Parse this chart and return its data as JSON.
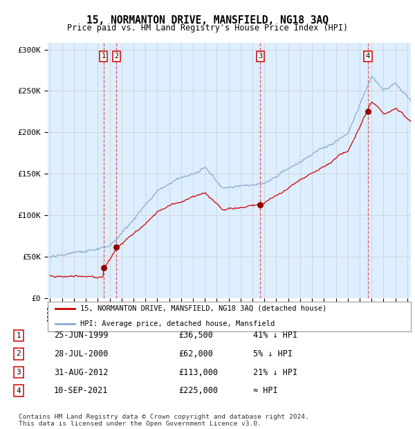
{
  "title": "15, NORMANTON DRIVE, MANSFIELD, NG18 3AQ",
  "subtitle": "Price paid vs. HM Land Registry's House Price Index (HPI)",
  "ylabel_ticks": [
    "£0",
    "£50K",
    "£100K",
    "£150K",
    "£200K",
    "£250K",
    "£300K"
  ],
  "ytick_values": [
    0,
    50000,
    100000,
    150000,
    200000,
    250000,
    300000
  ],
  "ylim": [
    0,
    310000
  ],
  "xlim_start": 1994.8,
  "xlim_end": 2025.3,
  "sales": [
    {
      "label": 1,
      "year": 1999.49,
      "price": 36500,
      "date_str": "25-JUN-1999",
      "price_str": "£36,500",
      "hpi_str": "41% ↓ HPI"
    },
    {
      "label": 2,
      "year": 2000.57,
      "price": 62000,
      "date_str": "28-JUL-2000",
      "price_str": "£62,000",
      "hpi_str": "5% ↓ HPI"
    },
    {
      "label": 3,
      "year": 2012.66,
      "price": 113000,
      "date_str": "31-AUG-2012",
      "price_str": "£113,000",
      "hpi_str": "21% ↓ HPI"
    },
    {
      "label": 4,
      "year": 2021.69,
      "price": 225000,
      "date_str": "10-SEP-2021",
      "price_str": "£225,000",
      "hpi_str": "≈ HPI"
    }
  ],
  "legend_line1": "15, NORMANTON DRIVE, MANSFIELD, NG18 3AQ (detached house)",
  "legend_line2": "HPI: Average price, detached house, Mansfield",
  "footer1": "Contains HM Land Registry data © Crown copyright and database right 2024.",
  "footer2": "This data is licensed under the Open Government Licence v3.0.",
  "price_line_color": "#cc0000",
  "hpi_line_color": "#88aacc",
  "background_color": "#ddeeff",
  "plot_bg_color": "#ffffff",
  "sale_dot_color": "#990000",
  "dashed_line_color": "#dd4444",
  "box_edge_color": "#cc0000",
  "grid_color": "#cccccc"
}
